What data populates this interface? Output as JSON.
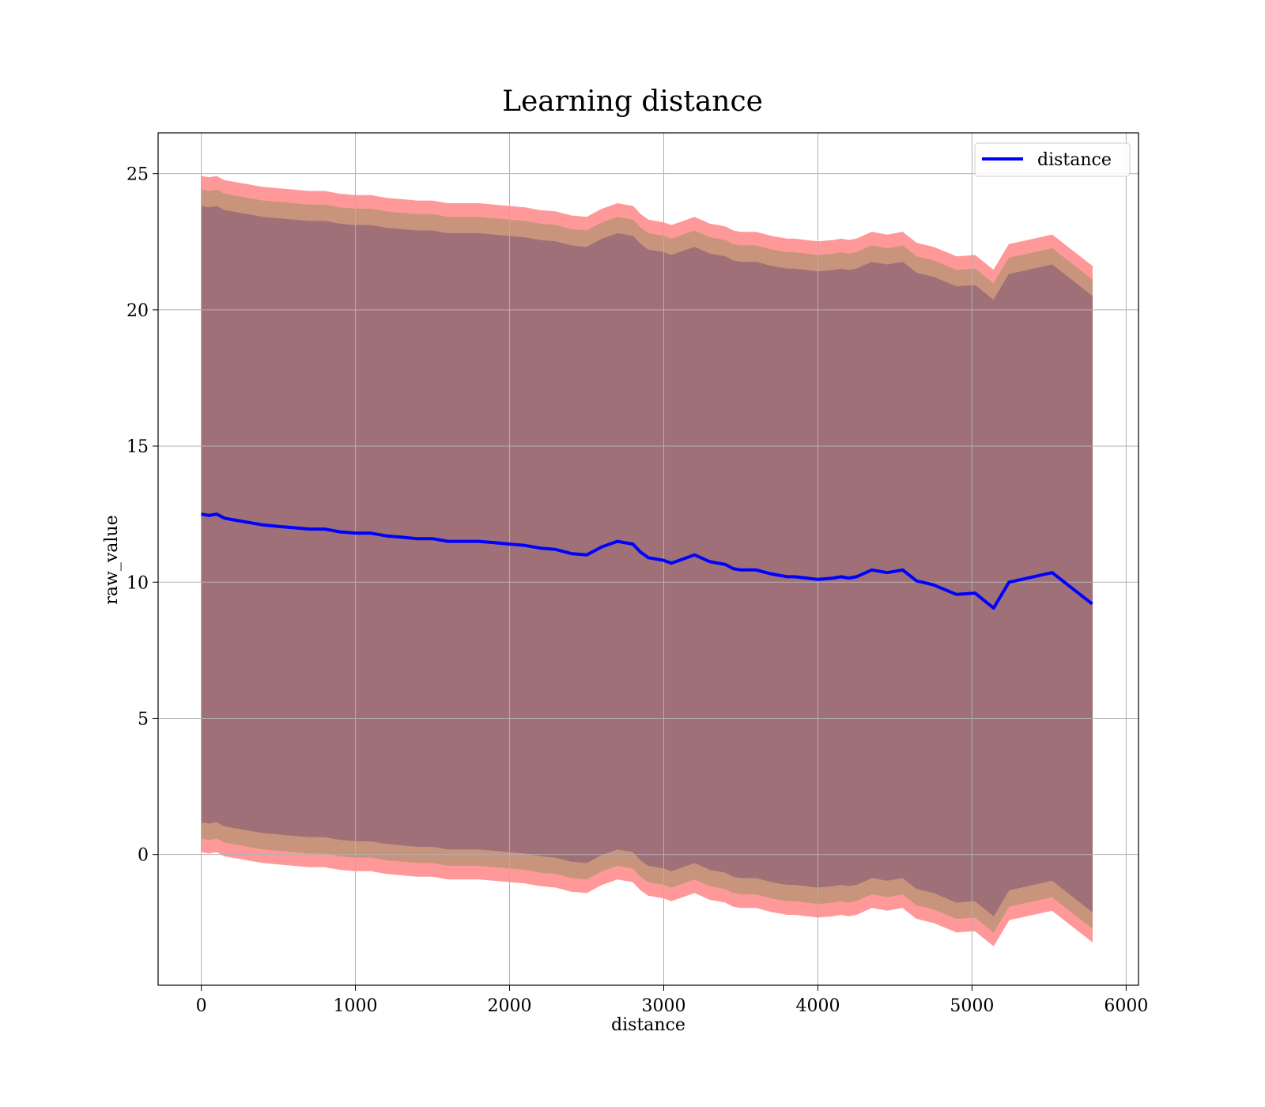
{
  "chart_data": {
    "type": "line",
    "title": "Learning distance",
    "xlabel": "distance",
    "ylabel": "raw_value",
    "xlim": [
      -280,
      6080
    ],
    "ylim": [
      -4.8,
      26.5
    ],
    "xticks": [
      0,
      1000,
      2000,
      3000,
      4000,
      5000,
      6000
    ],
    "yticks": [
      0,
      5,
      10,
      15,
      20,
      25
    ],
    "grid": true,
    "legend": {
      "location": "top-right",
      "entries": [
        "distance"
      ]
    },
    "colors": {
      "line": "#0000ff",
      "band_outer": "#ff9999",
      "band_middle": "#c8957c",
      "band_inner": "#a07079",
      "grid": "#b0b0b0"
    },
    "series": [
      {
        "name": "distance",
        "x": [
          0,
          50,
          100,
          150,
          200,
          250,
          300,
          350,
          400,
          500,
          600,
          700,
          800,
          900,
          1000,
          1100,
          1200,
          1300,
          1400,
          1500,
          1600,
          1700,
          1800,
          1900,
          2000,
          2100,
          2200,
          2300,
          2400,
          2500,
          2600,
          2700,
          2800,
          2850,
          2900,
          3000,
          3050,
          3100,
          3200,
          3300,
          3400,
          3450,
          3500,
          3600,
          3700,
          3800,
          3850,
          4000,
          4100,
          4150,
          4200,
          4250,
          4350,
          4450,
          4550,
          4640,
          4750,
          4900,
          5020,
          5140,
          5240,
          5520,
          5780
        ],
        "y": [
          12.5,
          12.45,
          12.5,
          12.35,
          12.3,
          12.25,
          12.2,
          12.15,
          12.1,
          12.05,
          12.0,
          11.95,
          11.95,
          11.85,
          11.8,
          11.8,
          11.7,
          11.65,
          11.6,
          11.6,
          11.5,
          11.5,
          11.5,
          11.45,
          11.4,
          11.35,
          11.25,
          11.2,
          11.05,
          11.0,
          11.3,
          11.5,
          11.4,
          11.1,
          10.9,
          10.8,
          10.7,
          10.8,
          11.0,
          10.75,
          10.65,
          10.5,
          10.45,
          10.45,
          10.3,
          10.2,
          10.2,
          10.1,
          10.15,
          10.2,
          10.15,
          10.2,
          10.45,
          10.35,
          10.45,
          10.05,
          9.9,
          9.55,
          9.6,
          9.05,
          10.0,
          10.35,
          9.2
        ]
      }
    ],
    "bands": [
      {
        "name": "outer",
        "lower_offset": -12.4,
        "upper_offset": 12.4
      },
      {
        "name": "middle",
        "lower_offset": -11.9,
        "upper_offset": 11.9
      },
      {
        "name": "inner",
        "lower_offset": -11.3,
        "upper_offset": 11.3
      }
    ]
  }
}
